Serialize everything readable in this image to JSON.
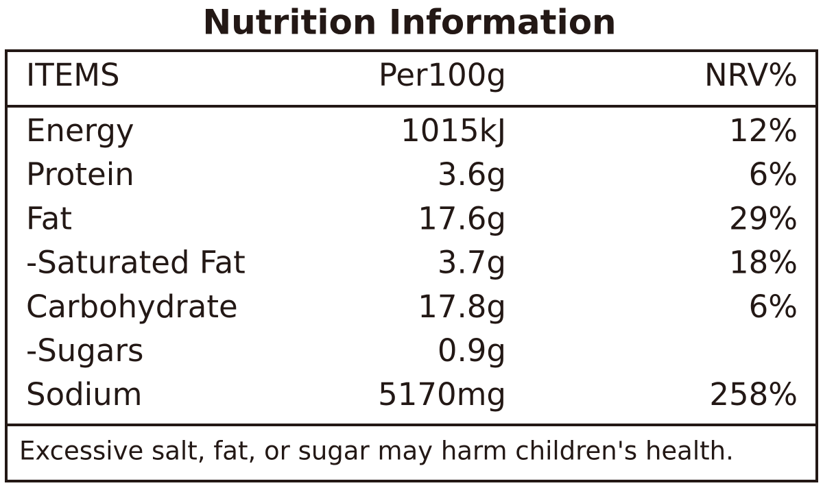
{
  "title": "Nutrition Information",
  "table": {
    "header": [
      "ITEMS",
      "Per100g",
      "NRV%"
    ],
    "rows": [
      [
        "Energy",
        "1015kJ",
        "12%"
      ],
      [
        "Protein",
        "3.6g",
        "6%"
      ],
      [
        "Fat",
        "17.6g",
        "29%"
      ],
      [
        "-Saturated Fat",
        "3.7g",
        "18%"
      ],
      [
        "Carbohydrate",
        "17.8g",
        "6%"
      ],
      [
        "-Sugars",
        "0.9g",
        null
      ],
      [
        "Sodium",
        "5170mg",
        "258%"
      ]
    ]
  },
  "footer": "Excessive salt, fat, or sugar may harm children's health."
}
